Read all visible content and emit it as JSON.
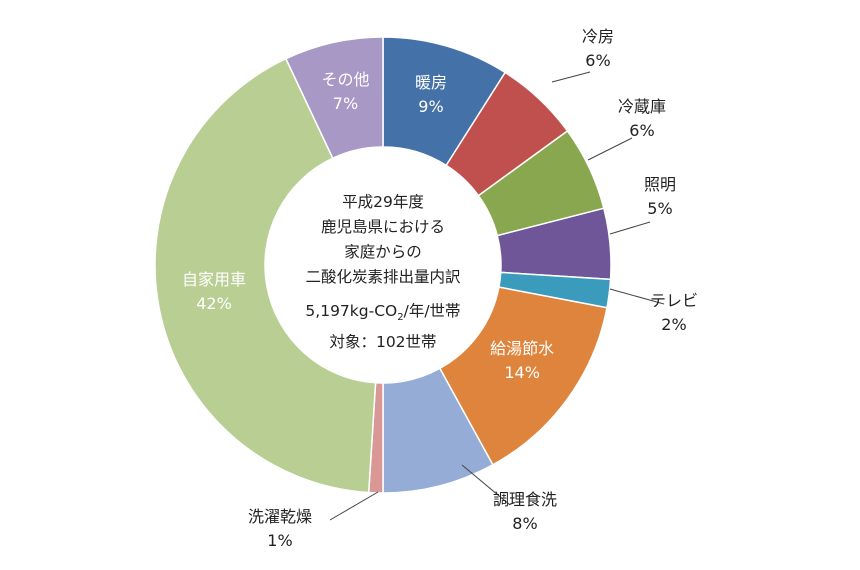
{
  "chart_data": {
    "type": "pie",
    "style": "donut",
    "center_text": {
      "line1": "平成29年度",
      "line2": "鹿児島県における",
      "line3": "家庭からの",
      "line4": "二酸化炭素排出量内訳",
      "line5_prefix": "5,197kg-CO",
      "line5_sub": "2",
      "line5_suffix": "/年/世帯",
      "line6": "対象：102世帯"
    },
    "slices": [
      {
        "name": "暖房",
        "value": 9,
        "label": "9%",
        "color": "#4472a8",
        "label_inside": true
      },
      {
        "name": "冷房",
        "value": 6,
        "label": "6%",
        "color": "#c0504d",
        "label_inside": false
      },
      {
        "name": "冷蔵庫",
        "value": 6,
        "label": "6%",
        "color": "#88a74e",
        "label_inside": false
      },
      {
        "name": "照明",
        "value": 5,
        "label": "5%",
        "color": "#6f5698",
        "label_inside": false
      },
      {
        "name": "テレビ",
        "value": 2,
        "label": "2%",
        "color": "#3b9bbd",
        "label_inside": false
      },
      {
        "name": "給湯節水",
        "value": 14,
        "label": "14%",
        "color": "#de843c",
        "label_inside": true
      },
      {
        "name": "調理食洗",
        "value": 8,
        "label": "8%",
        "color": "#95add6",
        "label_inside": false
      },
      {
        "name": "洗濯乾燥",
        "value": 1,
        "label": "1%",
        "color": "#d99795",
        "label_inside": false
      },
      {
        "name": "自家用車",
        "value": 42,
        "label": "42%",
        "color": "#b8ce93",
        "label_inside": true
      },
      {
        "name": "その他",
        "value": 7,
        "label": "7%",
        "color": "#a898c6",
        "label_inside": true
      }
    ]
  }
}
